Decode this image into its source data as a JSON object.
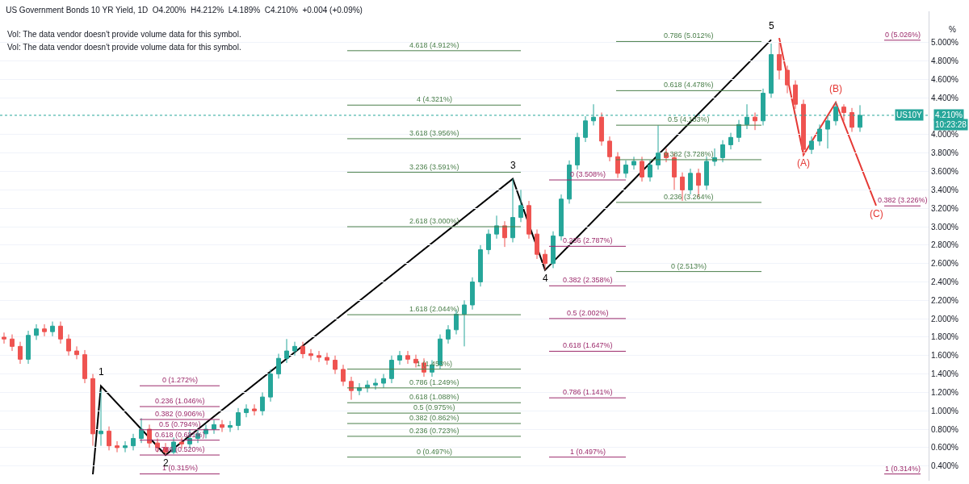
{
  "chart_data": {
    "type": "candlestick",
    "title": "US Government Bonds 10 YR Yield, 1D  O4.200%  H4.212%  L4.189%  C4.210%  +0.004 (+0.09%)",
    "ylabel": "%",
    "categories": [
      null,
      null,
      null,
      null,
      null,
      null,
      null,
      null,
      null,
      null,
      null,
      null,
      null,
      null,
      null,
      null,
      null,
      null,
      null,
      null,
      null,
      null,
      null,
      null,
      null,
      null,
      null,
      null,
      null,
      null,
      null,
      null,
      null,
      null,
      null,
      null,
      null,
      null,
      null,
      null,
      null,
      null,
      null,
      null,
      null,
      null,
      null,
      null,
      null,
      null,
      null,
      null,
      null,
      null,
      null,
      null,
      null,
      null,
      null,
      null,
      null,
      null,
      null,
      null,
      null,
      null,
      null,
      null,
      null,
      null,
      null,
      null,
      null,
      null,
      null,
      null,
      null,
      null,
      null,
      null,
      null,
      null,
      null,
      null,
      null,
      null,
      null,
      null,
      null,
      null,
      null,
      null,
      null,
      null,
      null,
      null,
      null,
      null,
      null,
      null,
      null,
      null,
      null,
      null,
      null,
      null,
      null,
      null,
      null,
      null,
      null,
      null,
      null
    ],
    "ohlc": [
      [
        1.8,
        1.85,
        1.73,
        1.78
      ],
      [
        1.78,
        1.83,
        1.65,
        1.7
      ],
      [
        1.7,
        1.75,
        1.51,
        1.56
      ],
      [
        1.56,
        1.87,
        1.51,
        1.82
      ],
      [
        1.82,
        1.94,
        1.77,
        1.89
      ],
      [
        1.89,
        1.94,
        1.81,
        1.86
      ],
      [
        1.86,
        1.97,
        1.81,
        1.92
      ],
      [
        1.92,
        1.97,
        1.73,
        1.78
      ],
      [
        1.78,
        1.83,
        1.6,
        1.65
      ],
      [
        1.65,
        1.7,
        1.56,
        1.61
      ],
      [
        1.61,
        1.66,
        1.3,
        1.35
      ],
      [
        1.35,
        1.4,
        0.62,
        0.75
      ],
      [
        0.75,
        1.22,
        0.62,
        0.78
      ],
      [
        0.78,
        0.83,
        0.57,
        0.62
      ],
      [
        0.62,
        0.67,
        0.55,
        0.6
      ],
      [
        0.6,
        0.67,
        0.55,
        0.62
      ],
      [
        0.62,
        0.75,
        0.57,
        0.7
      ],
      [
        0.7,
        0.92,
        0.65,
        0.8
      ],
      [
        0.8,
        0.85,
        0.6,
        0.65
      ],
      [
        0.65,
        0.7,
        0.55,
        0.6
      ],
      [
        0.6,
        0.65,
        0.52,
        0.55
      ],
      [
        0.55,
        0.71,
        0.53,
        0.66
      ],
      [
        0.66,
        0.71,
        0.59,
        0.64
      ],
      [
        0.64,
        0.8,
        0.59,
        0.7
      ],
      [
        0.7,
        0.8,
        0.65,
        0.75
      ],
      [
        0.75,
        0.85,
        0.7,
        0.8
      ],
      [
        0.8,
        0.9,
        0.75,
        0.85
      ],
      [
        0.85,
        0.9,
        0.77,
        0.82
      ],
      [
        0.82,
        0.89,
        0.77,
        0.84
      ],
      [
        0.84,
        1.03,
        0.79,
        0.98
      ],
      [
        0.98,
        1.07,
        0.93,
        1.02
      ],
      [
        1.02,
        1.07,
        0.95,
        1.0
      ],
      [
        1.0,
        1.2,
        0.95,
        1.15
      ],
      [
        1.15,
        1.45,
        1.1,
        1.4
      ],
      [
        1.4,
        1.62,
        1.35,
        1.57
      ],
      [
        1.57,
        1.78,
        1.52,
        1.65
      ],
      [
        1.65,
        1.75,
        1.6,
        1.7
      ],
      [
        1.7,
        1.75,
        1.57,
        1.62
      ],
      [
        1.62,
        1.67,
        1.55,
        1.6
      ],
      [
        1.6,
        1.65,
        1.53,
        1.58
      ],
      [
        1.58,
        1.63,
        1.5,
        1.55
      ],
      [
        1.55,
        1.6,
        1.4,
        1.45
      ],
      [
        1.45,
        1.5,
        1.27,
        1.32
      ],
      [
        1.32,
        1.37,
        1.12,
        1.22
      ],
      [
        1.22,
        1.3,
        1.17,
        1.25
      ],
      [
        1.25,
        1.33,
        1.2,
        1.28
      ],
      [
        1.28,
        1.35,
        1.23,
        1.3
      ],
      [
        1.3,
        1.4,
        1.25,
        1.35
      ],
      [
        1.35,
        1.6,
        1.3,
        1.55
      ],
      [
        1.55,
        1.65,
        1.5,
        1.6
      ],
      [
        1.6,
        1.65,
        1.51,
        1.56
      ],
      [
        1.56,
        1.61,
        1.47,
        1.52
      ],
      [
        1.52,
        1.57,
        1.37,
        1.42
      ],
      [
        1.42,
        1.55,
        1.37,
        1.5
      ],
      [
        1.5,
        1.83,
        1.45,
        1.78
      ],
      [
        1.78,
        1.93,
        1.73,
        1.88
      ],
      [
        1.88,
        2.1,
        1.83,
        2.05
      ],
      [
        2.05,
        2.2,
        1.7,
        2.15
      ],
      [
        2.15,
        2.45,
        2.1,
        2.4
      ],
      [
        2.4,
        2.8,
        2.35,
        2.75
      ],
      [
        2.75,
        2.97,
        2.7,
        2.92
      ],
      [
        2.92,
        3.12,
        2.87,
        3.01
      ],
      [
        3.01,
        3.06,
        2.78,
        2.88
      ],
      [
        2.88,
        3.52,
        2.83,
        3.1
      ],
      [
        3.1,
        3.4,
        3.05,
        3.23
      ],
      [
        3.23,
        3.28,
        2.87,
        2.92
      ],
      [
        2.92,
        2.97,
        2.65,
        2.7
      ],
      [
        2.7,
        2.75,
        2.53,
        2.6
      ],
      [
        2.6,
        2.95,
        2.55,
        2.9
      ],
      [
        2.9,
        3.35,
        2.85,
        3.3
      ],
      [
        3.3,
        3.72,
        3.25,
        3.67
      ],
      [
        3.67,
        4.02,
        3.62,
        3.97
      ],
      [
        3.97,
        4.2,
        3.92,
        4.15
      ],
      [
        4.15,
        4.33,
        4.1,
        4.19
      ],
      [
        4.19,
        4.24,
        3.88,
        3.93
      ],
      [
        3.93,
        3.98,
        3.71,
        3.76
      ],
      [
        3.76,
        3.81,
        3.53,
        3.58
      ],
      [
        3.58,
        3.72,
        3.53,
        3.67
      ],
      [
        3.67,
        3.76,
        3.62,
        3.71
      ],
      [
        3.71,
        3.76,
        3.49,
        3.54
      ],
      [
        3.54,
        3.72,
        3.49,
        3.67
      ],
      [
        3.67,
        4.1,
        3.62,
        3.8
      ],
      [
        3.8,
        3.85,
        3.7,
        3.75
      ],
      [
        3.75,
        3.8,
        3.4,
        3.54
      ],
      [
        3.54,
        3.59,
        3.28,
        3.4
      ],
      [
        3.4,
        3.63,
        3.35,
        3.58
      ],
      [
        3.58,
        3.63,
        3.32,
        3.45
      ],
      [
        3.45,
        3.76,
        3.4,
        3.71
      ],
      [
        3.71,
        3.85,
        3.66,
        3.75
      ],
      [
        3.75,
        3.94,
        3.7,
        3.89
      ],
      [
        3.89,
        4.02,
        3.84,
        3.97
      ],
      [
        3.97,
        4.16,
        3.92,
        4.11
      ],
      [
        4.11,
        4.33,
        4.06,
        4.19
      ],
      [
        4.19,
        4.24,
        4.05,
        4.15
      ],
      [
        4.15,
        4.5,
        4.1,
        4.45
      ],
      [
        4.45,
        4.99,
        4.4,
        4.87
      ],
      [
        4.87,
        5.0,
        4.6,
        4.7
      ],
      [
        4.7,
        4.75,
        4.45,
        4.54
      ],
      [
        4.54,
        4.59,
        4.28,
        4.33
      ],
      [
        4.33,
        4.38,
        3.78,
        3.84
      ],
      [
        3.84,
        3.98,
        3.79,
        3.93
      ],
      [
        3.93,
        4.11,
        3.88,
        4.06
      ],
      [
        4.06,
        4.2,
        3.85,
        4.15
      ],
      [
        4.15,
        4.35,
        4.1,
        4.3
      ],
      [
        4.3,
        4.33,
        4.15,
        4.24
      ],
      [
        4.24,
        4.29,
        4.03,
        4.08
      ],
      [
        4.08,
        4.32,
        4.03,
        4.21
      ],
      null,
      null,
      null,
      null,
      null,
      null
    ],
    "series": [
      {
        "type": "line",
        "color": "#000000",
        "values": [
          null,
          null,
          null,
          null,
          null,
          null,
          null,
          null,
          null,
          null,
          null,
          0.31,
          1.27,
          null,
          null,
          null,
          null,
          null,
          null,
          null,
          0.52,
          null,
          null,
          null,
          null,
          null,
          null,
          null,
          null,
          null,
          null,
          null,
          null,
          null,
          null,
          null,
          null,
          null,
          null,
          null,
          null,
          null,
          null,
          null,
          null,
          null,
          null,
          null,
          null,
          null,
          null,
          null,
          null,
          null,
          null,
          null,
          null,
          null,
          null,
          null,
          null,
          null,
          null,
          3.52,
          null,
          null,
          null,
          2.53,
          null,
          null,
          null,
          null,
          null,
          null,
          null,
          null,
          null,
          null,
          null,
          null,
          null,
          null,
          null,
          null,
          null,
          null,
          null,
          null,
          null,
          null,
          null,
          null,
          null,
          null,
          null,
          5.03,
          null,
          null,
          null,
          null,
          null,
          null,
          null,
          null,
          null,
          null,
          null,
          null,
          null,
          null,
          null,
          null,
          null
        ]
      },
      {
        "type": "line",
        "color": "#e53935",
        "values": [
          null,
          null,
          null,
          null,
          null,
          null,
          null,
          null,
          null,
          null,
          null,
          null,
          null,
          null,
          null,
          null,
          null,
          null,
          null,
          null,
          null,
          null,
          null,
          null,
          null,
          null,
          null,
          null,
          null,
          null,
          null,
          null,
          null,
          null,
          null,
          null,
          null,
          null,
          null,
          null,
          null,
          null,
          null,
          null,
          null,
          null,
          null,
          null,
          null,
          null,
          null,
          null,
          null,
          null,
          null,
          null,
          null,
          null,
          null,
          null,
          null,
          null,
          null,
          null,
          null,
          null,
          null,
          null,
          null,
          null,
          null,
          null,
          null,
          null,
          null,
          null,
          null,
          null,
          null,
          null,
          null,
          null,
          null,
          null,
          null,
          null,
          null,
          null,
          null,
          null,
          null,
          null,
          null,
          null,
          null,
          null,
          5.05,
          null,
          null,
          3.78,
          null,
          null,
          null,
          4.35,
          null,
          null,
          null,
          null,
          3.23,
          null,
          null,
          null,
          null
        ]
      }
    ],
    "ylim": [
      0.24,
      5.34
    ],
    "yticks": [
      {
        "value": 0.4,
        "label": "0.400%"
      },
      {
        "value": 0.6,
        "label": "0.600%"
      },
      {
        "value": 0.8,
        "label": "0.800%"
      },
      {
        "value": 1.0,
        "label": "1.000%"
      },
      {
        "value": 1.2,
        "label": "1.200%"
      },
      {
        "value": 1.4,
        "label": "1.400%"
      },
      {
        "value": 1.6,
        "label": "1.600%"
      },
      {
        "value": 1.8,
        "label": "1.800%"
      },
      {
        "value": 2.0,
        "label": "2.000%"
      },
      {
        "value": 2.2,
        "label": "2.200%"
      },
      {
        "value": 2.4,
        "label": "2.400%"
      },
      {
        "value": 2.6,
        "label": "2.600%"
      },
      {
        "value": 2.8,
        "label": "2.800%"
      },
      {
        "value": 3.0,
        "label": "3.000%"
      },
      {
        "value": 3.2,
        "label": "3.200%"
      },
      {
        "value": 3.4,
        "label": "3.400%"
      },
      {
        "value": 3.6,
        "label": "3.600%"
      },
      {
        "value": 3.8,
        "label": "3.800%"
      },
      {
        "value": 4.0,
        "label": "4.000%"
      },
      {
        "value": 4.4,
        "label": "4.400%"
      },
      {
        "value": 4.6,
        "label": "4.600%"
      },
      {
        "value": 4.8,
        "label": "4.800%"
      },
      {
        "value": 5.0,
        "label": "5.000%"
      }
    ],
    "grid": "y",
    "tick_labels": "y",
    "ref_lines": [
      {
        "axis": "y",
        "value": 4.21,
        "label": "US10Y",
        "color": "#26a69a",
        "line_style": "dotted"
      },
      {
        "axis": "y",
        "value": 1.272,
        "label": "0 (1.272%)",
        "color": "#9c2a6b"
      },
      {
        "axis": "y",
        "value": 1.046,
        "label": "0.236 (1.046%)",
        "color": "#9c2a6b"
      },
      {
        "axis": "y",
        "value": 0.906,
        "label": "0.382 (0.906%)",
        "color": "#9c2a6b"
      },
      {
        "axis": "y",
        "value": 0.794,
        "label": "0.5 (0.794%)",
        "color": "#9c2a6b"
      },
      {
        "axis": "y",
        "value": 0.681,
        "label": "0.618 (0.681%)",
        "color": "#9c2a6b"
      },
      {
        "axis": "y",
        "value": 0.52,
        "label": "0.786 (0.520%)",
        "color": "#9c2a6b"
      },
      {
        "axis": "y",
        "value": 0.315,
        "label": "1 (0.315%)",
        "color": "#9c2a6b"
      },
      {
        "axis": "y",
        "value": 4.912,
        "label": "4.618 (4.912%)",
        "color": "#4a7f4a"
      },
      {
        "axis": "y",
        "value": 4.321,
        "label": "4 (4.321%)",
        "color": "#4a7f4a"
      },
      {
        "axis": "y",
        "value": 3.956,
        "label": "3.618 (3.956%)",
        "color": "#4a7f4a"
      },
      {
        "axis": "y",
        "value": 3.591,
        "label": "3.236 (3.591%)",
        "color": "#4a7f4a"
      },
      {
        "axis": "y",
        "value": 3.0,
        "label": "2.618 (3.000%)",
        "color": "#4a7f4a"
      },
      {
        "axis": "y",
        "value": 2.044,
        "label": "1.618 (2.044%)",
        "color": "#4a7f4a"
      },
      {
        "axis": "y",
        "value": 1.453,
        "label": "1 (1.453%)",
        "color": "#4a7f4a"
      },
      {
        "axis": "y",
        "value": 1.249,
        "label": "0.786 (1.249%)",
        "color": "#4a7f4a"
      },
      {
        "axis": "y",
        "value": 1.088,
        "label": "0.618 (1.088%)",
        "color": "#4a7f4a"
      },
      {
        "axis": "y",
        "value": 0.975,
        "label": "0.5 (0.975%)",
        "color": "#4a7f4a"
      },
      {
        "axis": "y",
        "value": 0.862,
        "label": "0.382 (0.862%)",
        "color": "#4a7f4a"
      },
      {
        "axis": "y",
        "value": 0.723,
        "label": "0.236 (0.723%)",
        "color": "#4a7f4a"
      },
      {
        "axis": "y",
        "value": 0.497,
        "label": "0 (0.497%)",
        "color": "#4a7f4a"
      },
      {
        "axis": "y",
        "value": 3.508,
        "label": "0 (3.508%)",
        "color": "#9c2a6b"
      },
      {
        "axis": "y",
        "value": 2.787,
        "label": "0.236 (2.787%)",
        "color": "#9c2a6b"
      },
      {
        "axis": "y",
        "value": 2.358,
        "label": "0.382 (2.358%)",
        "color": "#9c2a6b"
      },
      {
        "axis": "y",
        "value": 2.002,
        "label": "0.5 (2.002%)",
        "color": "#9c2a6b"
      },
      {
        "axis": "y",
        "value": 1.647,
        "label": "0.618 (1.647%)",
        "color": "#9c2a6b"
      },
      {
        "axis": "y",
        "value": 1.141,
        "label": "0.786 (1.141%)",
        "color": "#9c2a6b"
      },
      {
        "axis": "y",
        "value": 0.497,
        "label": "1 (0.497%)",
        "color": "#9c2a6b"
      },
      {
        "axis": "y",
        "value": 5.012,
        "label": "0.786 (5.012%)",
        "color": "#4a7f4a"
      },
      {
        "axis": "y",
        "value": 4.478,
        "label": "0.618 (4.478%)",
        "color": "#4a7f4a"
      },
      {
        "axis": "y",
        "value": 4.103,
        "label": "0.5 (4.103%)",
        "color": "#4a7f4a"
      },
      {
        "axis": "y",
        "value": 3.728,
        "label": "0.382 (3.728%)",
        "color": "#4a7f4a"
      },
      {
        "axis": "y",
        "value": 3.264,
        "label": "0.236 (3.264%)",
        "color": "#4a7f4a"
      },
      {
        "axis": "y",
        "value": 2.513,
        "label": "0 (2.513%)",
        "color": "#4a7f4a"
      },
      {
        "axis": "y",
        "value": 5.026,
        "label": "0 (5.026%)",
        "color": "#9c2a6b"
      },
      {
        "axis": "y",
        "value": 3.226,
        "label": "0.382 (3.226%)",
        "color": "#9c2a6b"
      },
      {
        "axis": "y",
        "value": 0.314,
        "label": "1 (0.314%)",
        "color": "#9c2a6b"
      }
    ],
    "annotations": [
      "Vol: The data vendor doesn't provide volume data for this symbol.",
      "Vol: The data vendor doesn't provide volume data for this symbol.",
      "4.210%",
      "10:23:28",
      {
        "text": "1",
        "y": 1.27
      },
      {
        "text": "2",
        "y": 0.52
      },
      {
        "text": "3",
        "y": 3.52
      },
      {
        "text": "4",
        "y": 2.53
      },
      {
        "text": "5",
        "y": 5.03
      },
      {
        "text": "(A)",
        "y": 3.78
      },
      {
        "text": "(B)",
        "y": 4.35
      },
      {
        "text": "(C)",
        "y": 3.23
      }
    ]
  }
}
